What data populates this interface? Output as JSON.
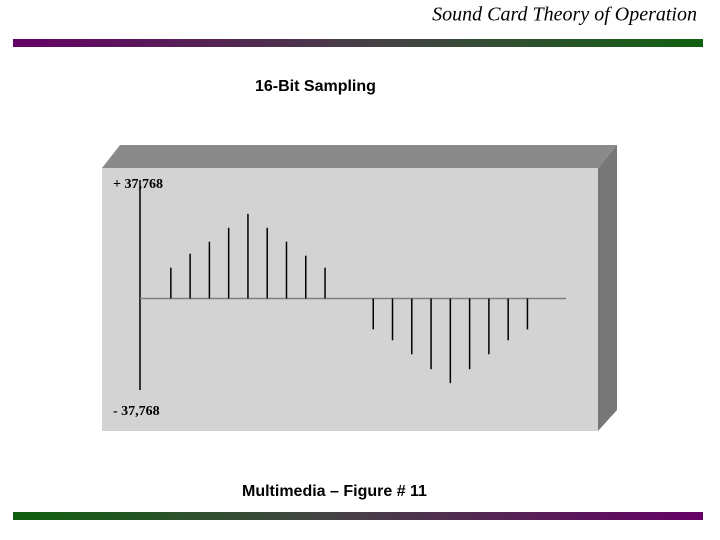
{
  "header": {
    "title": "Sound Card Theory of Operation"
  },
  "footer": {
    "caption": "Multimedia – Figure # 11"
  },
  "chart_data": {
    "type": "stem",
    "title": "16-Bit Sampling",
    "x": [
      1,
      2,
      3,
      4,
      5,
      6,
      7,
      8,
      9,
      11.5,
      12.5,
      13.5,
      14.5,
      15.5,
      16.5,
      17.5,
      18.5,
      19.5
    ],
    "values": [
      10270,
      14900,
      18880,
      23520,
      28160,
      23520,
      18880,
      14250,
      10270,
      -10270,
      -13910,
      -18550,
      -23520,
      -28160,
      -23520,
      -18550,
      -13910,
      -10270
    ],
    "color": "#000000",
    "xlim": [
      -0.6,
      21.5
    ],
    "ylim": [
      -37768,
      37768
    ],
    "yticks": [
      {
        "value": 37768,
        "label": "+ 37,768"
      },
      {
        "value": -37768,
        "label": "- 37,768"
      }
    ]
  }
}
